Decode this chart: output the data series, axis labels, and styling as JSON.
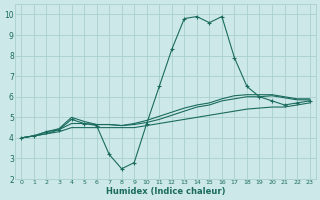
{
  "xlabel": "Humidex (Indice chaleur)",
  "x_values": [
    0,
    1,
    2,
    3,
    4,
    5,
    6,
    7,
    8,
    9,
    10,
    11,
    12,
    13,
    14,
    15,
    16,
    17,
    18,
    19,
    20,
    21,
    22,
    23
  ],
  "series1": [
    4.0,
    4.1,
    4.3,
    4.4,
    4.9,
    4.7,
    4.6,
    3.2,
    2.5,
    2.8,
    4.7,
    6.5,
    8.3,
    9.8,
    9.9,
    9.6,
    9.9,
    7.9,
    6.5,
    6.0,
    5.8,
    5.6,
    5.7,
    5.8
  ],
  "series2": [
    4.0,
    4.1,
    4.3,
    4.45,
    5.0,
    4.8,
    4.65,
    4.65,
    4.6,
    4.65,
    4.75,
    4.9,
    5.1,
    5.3,
    5.5,
    5.6,
    5.8,
    5.9,
    6.0,
    6.0,
    6.05,
    5.95,
    5.85,
    5.85
  ],
  "series3": [
    4.0,
    4.1,
    4.2,
    4.3,
    4.5,
    4.5,
    4.5,
    4.5,
    4.5,
    4.5,
    4.6,
    4.7,
    4.8,
    4.9,
    5.0,
    5.1,
    5.2,
    5.3,
    5.4,
    5.45,
    5.5,
    5.5,
    5.6,
    5.7
  ],
  "series4": [
    4.0,
    4.1,
    4.2,
    4.4,
    4.7,
    4.7,
    4.65,
    4.65,
    4.6,
    4.7,
    4.85,
    5.05,
    5.25,
    5.45,
    5.6,
    5.7,
    5.9,
    6.05,
    6.1,
    6.1,
    6.1,
    6.0,
    5.9,
    5.9
  ],
  "line_color": "#1a6b5e",
  "bg_color": "#cde8e8",
  "grid_color": "#aacfcf",
  "ylim": [
    2,
    10.5
  ],
  "xlim": [
    -0.5,
    23.5
  ],
  "yticks": [
    2,
    3,
    4,
    5,
    6,
    7,
    8,
    9,
    10
  ],
  "xticks": [
    0,
    1,
    2,
    3,
    4,
    5,
    6,
    7,
    8,
    9,
    10,
    11,
    12,
    13,
    14,
    15,
    16,
    17,
    18,
    19,
    20,
    21,
    22,
    23
  ]
}
